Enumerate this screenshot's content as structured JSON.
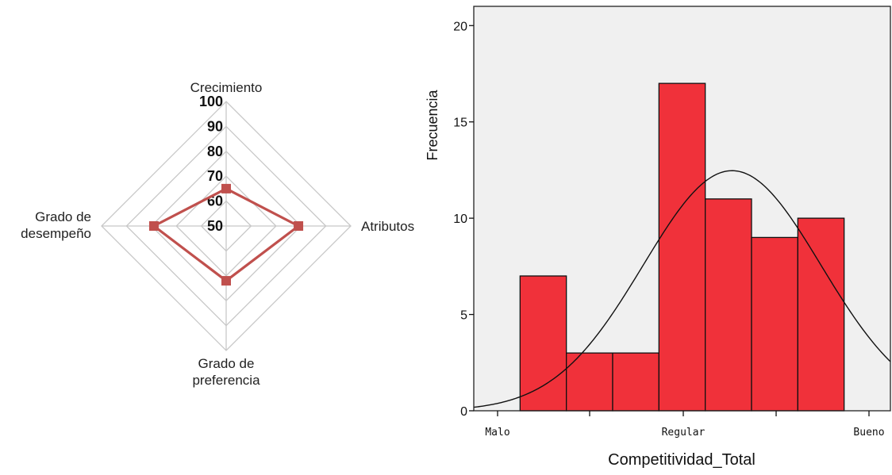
{
  "chart_data": [
    {
      "type": "radar",
      "axes": [
        "Crecimiento",
        "Atributos",
        "Grado de preferencia",
        "Grado de desempeño"
      ],
      "axis_label_lines": [
        [
          "Crecimiento"
        ],
        [
          "Atributos"
        ],
        [
          "Grado de",
          "preferencia"
        ],
        [
          "Grado de",
          "desempeño"
        ]
      ],
      "ticks": [
        50,
        60,
        70,
        80,
        90,
        100
      ],
      "range": [
        50,
        100
      ],
      "series": [
        {
          "values": [
            65,
            79,
            72,
            79
          ]
        }
      ],
      "colors": {
        "series": "#c0504d",
        "grid": "#c8c8c8"
      }
    },
    {
      "type": "bar",
      "subtype": "histogram",
      "ylabel": "Frecuencia",
      "xlabel": "Competitividad_Total",
      "ylim": [
        0,
        21
      ],
      "yticks": [
        0,
        5,
        10,
        15,
        20
      ],
      "xticks": [
        "Malo",
        "Regular",
        "Bueno"
      ],
      "bin_edges": [
        1.5,
        2,
        2.5,
        3,
        3.5,
        4,
        4.5,
        5
      ],
      "values": [
        7,
        3,
        3,
        17,
        11,
        9,
        10
      ],
      "normal_curve": {
        "mean": 3.79,
        "sd": 0.96,
        "n": 60,
        "bin_width": 0.5
      },
      "colors": {
        "bar": "#f0313a",
        "plot_bg": "#f0f0f0",
        "curve": "#111111"
      }
    }
  ]
}
